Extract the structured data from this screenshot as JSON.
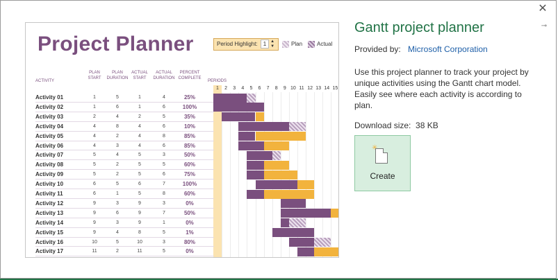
{
  "window": {
    "close_label": "✕",
    "pin_label": "⊸"
  },
  "preview": {
    "title": "Project Planner",
    "period_highlight_label": "Period Highlight:",
    "period_highlight_value": "1",
    "legend_plan": "Plan",
    "legend_actual": "Actual",
    "headers": {
      "activity": "ACTIVITY",
      "plan_start": [
        "PLAN",
        "START"
      ],
      "plan_duration": [
        "PLAN",
        "DURATION"
      ],
      "actual_start": [
        "ACTUAL",
        "START"
      ],
      "actual_duration": [
        "ACTUAL",
        "DURATION"
      ],
      "percent_complete": [
        "PERCENT",
        "COMPLETE"
      ],
      "periods": "PERIODS"
    },
    "periods": [
      "1",
      "2",
      "3",
      "4",
      "5",
      "6",
      "7",
      "8",
      "9",
      "10",
      "11",
      "12",
      "13",
      "14",
      "15"
    ],
    "activities": [
      {
        "name": "Activity 01",
        "ps": "1",
        "pd": "5",
        "as": "1",
        "ad": "4",
        "pct": "25%"
      },
      {
        "name": "Activity 02",
        "ps": "1",
        "pd": "6",
        "as": "1",
        "ad": "6",
        "pct": "100%"
      },
      {
        "name": "Activity 03",
        "ps": "2",
        "pd": "4",
        "as": "2",
        "ad": "5",
        "pct": "35%"
      },
      {
        "name": "Activity 04",
        "ps": "4",
        "pd": "8",
        "as": "4",
        "ad": "6",
        "pct": "10%"
      },
      {
        "name": "Activity 05",
        "ps": "4",
        "pd": "2",
        "as": "4",
        "ad": "8",
        "pct": "85%"
      },
      {
        "name": "Activity 06",
        "ps": "4",
        "pd": "3",
        "as": "4",
        "ad": "6",
        "pct": "85%"
      },
      {
        "name": "Activity 07",
        "ps": "5",
        "pd": "4",
        "as": "5",
        "ad": "3",
        "pct": "50%"
      },
      {
        "name": "Activity 08",
        "ps": "5",
        "pd": "2",
        "as": "5",
        "ad": "5",
        "pct": "60%"
      },
      {
        "name": "Activity 09",
        "ps": "5",
        "pd": "2",
        "as": "5",
        "ad": "6",
        "pct": "75%"
      },
      {
        "name": "Activity 10",
        "ps": "6",
        "pd": "5",
        "as": "6",
        "ad": "7",
        "pct": "100%"
      },
      {
        "name": "Activity 11",
        "ps": "6",
        "pd": "1",
        "as": "5",
        "ad": "8",
        "pct": "60%"
      },
      {
        "name": "Activity 12",
        "ps": "9",
        "pd": "3",
        "as": "9",
        "ad": "3",
        "pct": "0%"
      },
      {
        "name": "Activity 13",
        "ps": "9",
        "pd": "6",
        "as": "9",
        "ad": "7",
        "pct": "50%"
      },
      {
        "name": "Activity 14",
        "ps": "9",
        "pd": "3",
        "as": "9",
        "ad": "1",
        "pct": "0%"
      },
      {
        "name": "Activity 15",
        "ps": "9",
        "pd": "4",
        "as": "8",
        "ad": "5",
        "pct": "1%"
      },
      {
        "name": "Activity 16",
        "ps": "10",
        "pd": "5",
        "as": "10",
        "ad": "3",
        "pct": "80%"
      },
      {
        "name": "Activity 17",
        "ps": "11",
        "pd": "2",
        "as": "11",
        "ad": "5",
        "pct": "0%"
      }
    ]
  },
  "info": {
    "title": "Gantt project planner",
    "provided_by_label": "Provided by:",
    "provider": "Microsoft Corporation",
    "description": "Use this project planner to track your project by unique activities using the Gantt chart model. Easily see where each activity is according to plan.",
    "download_size_label": "Download size:",
    "download_size": "38 KB"
  },
  "create_button": {
    "label": "Create"
  },
  "colors": {
    "accent_green": "#217346",
    "plan_purple": "#7a4f7e",
    "overrun_orange": "#f2b33d",
    "highlight_tan": "#fbe3b0"
  }
}
